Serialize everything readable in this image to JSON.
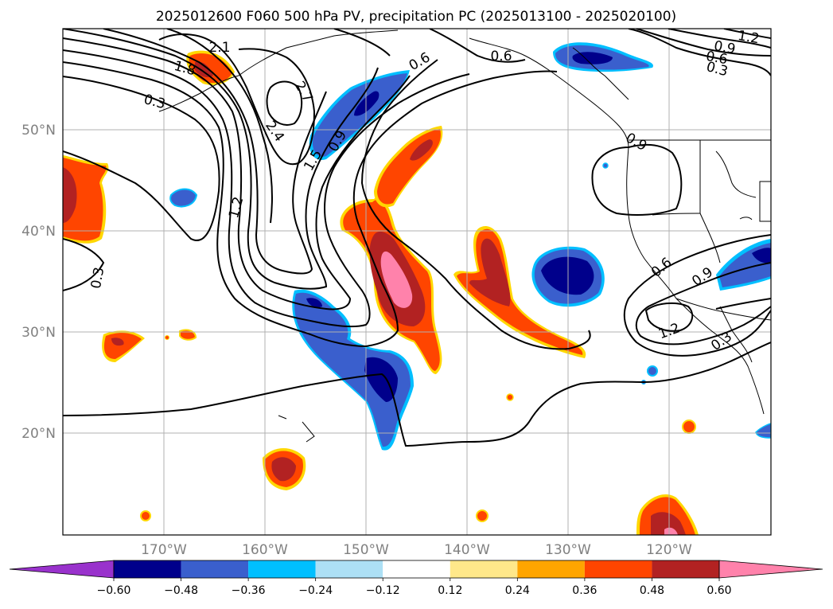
{
  "title": "2025012600 F060 500 hPa PV, precipitation PC (2025013100 - 2025020100)",
  "map": {
    "lon_labels": [
      "170°W",
      "160°W",
      "150°W",
      "140°W",
      "130°W",
      "120°W"
    ],
    "lat_labels": [
      "50°N",
      "40°N",
      "30°N",
      "20°N"
    ],
    "contour_labels": [
      "2.1",
      "1.8",
      "0.3",
      "2.7",
      "2.4",
      "1.5",
      "0.9",
      "0.6",
      "1.2",
      "0.3",
      "0.6",
      "0.9",
      "0.3",
      "1.2",
      "0.6",
      "0.9",
      "1.2",
      "0.9",
      "0.6",
      "0.3"
    ]
  },
  "colorbar": {
    "ticks": [
      "−0.60",
      "−0.48",
      "−0.36",
      "−0.24",
      "−0.12",
      "0.12",
      "0.24",
      "0.36",
      "0.48",
      "0.60"
    ],
    "colors": [
      "#9932CC",
      "#00008B",
      "#3A5FCD",
      "#00BFFF",
      "#ADE0F5",
      "#FFFFFF",
      "#FFE88A",
      "#FFA500",
      "#FF4500",
      "#B22222",
      "#FF82AB"
    ]
  },
  "palette": {
    "red_orange": "#FF4500",
    "dark_red": "#B22222",
    "pink": "#FF82AB",
    "yellow": "#FFD700",
    "navy": "#00008B",
    "royal_blue": "#3A5FCD",
    "sky_blue": "#00BFFF"
  }
}
